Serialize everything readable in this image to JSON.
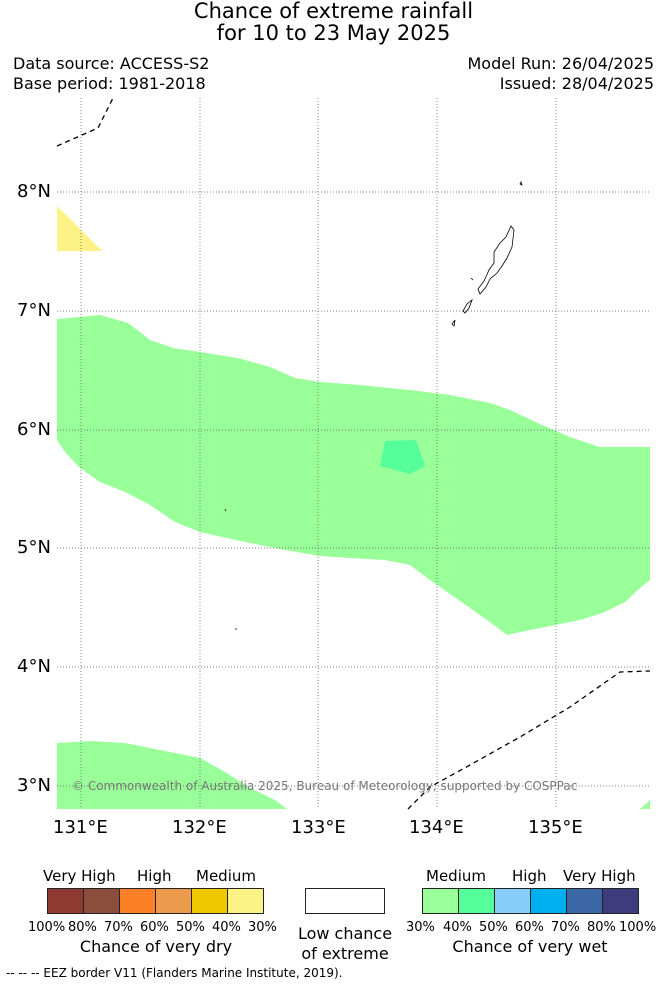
{
  "title_line1": "Chance of extreme rainfall",
  "title_line2": "for 10 to 23 May 2025",
  "data_source": "Data source: ACCESS-S2",
  "base_period": "Base period: 1981-2018",
  "model_run": "Model Run: 26/04/2025",
  "issued": "Issued: 28/04/2025",
  "copyright": "© Commonwealth of Australia 2025, Bureau of Meteorology, supported by COSPPac",
  "lat_ticks": [
    "8°N",
    "7°N",
    "6°N",
    "5°N",
    "4°N",
    "3°N"
  ],
  "lon_ticks": [
    "131°E",
    "132°E",
    "133°E",
    "134°E",
    "135°E"
  ],
  "colors": {
    "dry": [
      "#8e3a33",
      "#8b4e3c",
      "#fd7f28",
      "#eb9b4b",
      "#f0c800",
      "#fdf286"
    ],
    "wet": [
      "#99ff99",
      "#55ff99",
      "#87cefa",
      "#00b0ee",
      "#3b67a6",
      "#3e3c7d"
    ],
    "low": "#ffffff",
    "medium_wet_area": "#99ff99",
    "high_wet_area": "#55ff99",
    "medium_dry_area": "#fdf286"
  },
  "legend": {
    "dry_levels": [
      "Very High",
      "High",
      "Medium"
    ],
    "dry_pcts": [
      "100%",
      "80%",
      "70%",
      "60%",
      "50%",
      "40%",
      "30%"
    ],
    "dry_caption": "Chance of very dry",
    "low_caption_line1": "Low chance",
    "low_caption_line2": "of extreme",
    "wet_levels": [
      "Medium",
      "High",
      "Very High"
    ],
    "wet_pcts": [
      "30%",
      "40%",
      "50%",
      "60%",
      "70%",
      "80%",
      "100%"
    ],
    "wet_caption": "Chance of very wet"
  },
  "footnote": "--  --  -- EEZ border V11 (Flanders Marine Institute, 2019)."
}
